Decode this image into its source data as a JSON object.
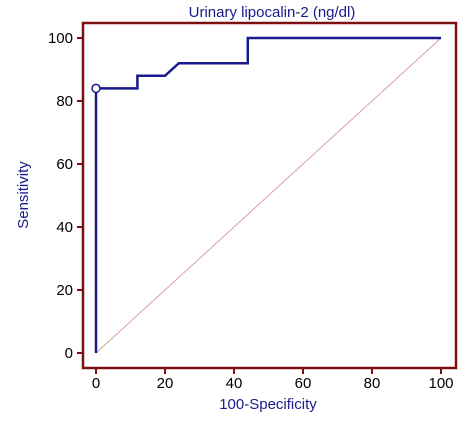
{
  "chart_data": {
    "type": "line",
    "title": "Urinary lipocalin-2 (ng/dl)",
    "xlabel": "100-Specificity",
    "ylabel": "Sensitivity",
    "xlim": [
      0,
      100
    ],
    "ylim": [
      0,
      100
    ],
    "x_ticks": [
      "0",
      "20",
      "40",
      "60",
      "80",
      "100"
    ],
    "y_ticks": [
      "0",
      "20",
      "40",
      "60",
      "80",
      "100"
    ],
    "grid": false,
    "series": [
      {
        "kind": "roc-step",
        "color": "#1a1a8c",
        "points": [
          [
            0,
            0
          ],
          [
            0,
            84
          ],
          [
            12,
            84
          ],
          [
            12,
            88
          ],
          [
            20,
            88
          ],
          [
            24,
            92
          ],
          [
            44,
            92
          ],
          [
            44,
            100
          ],
          [
            100,
            100
          ]
        ]
      },
      {
        "kind": "reference-diagonal",
        "color": "#d9a0a0",
        "points": [
          [
            0,
            0
          ],
          [
            100,
            100
          ]
        ]
      }
    ],
    "markers": [
      {
        "x": 0,
        "y": 84,
        "shape": "open-circle"
      }
    ],
    "colors": {
      "frame": "#7a1010",
      "text": "#1a1a8c",
      "tick_text": "#000000"
    }
  }
}
